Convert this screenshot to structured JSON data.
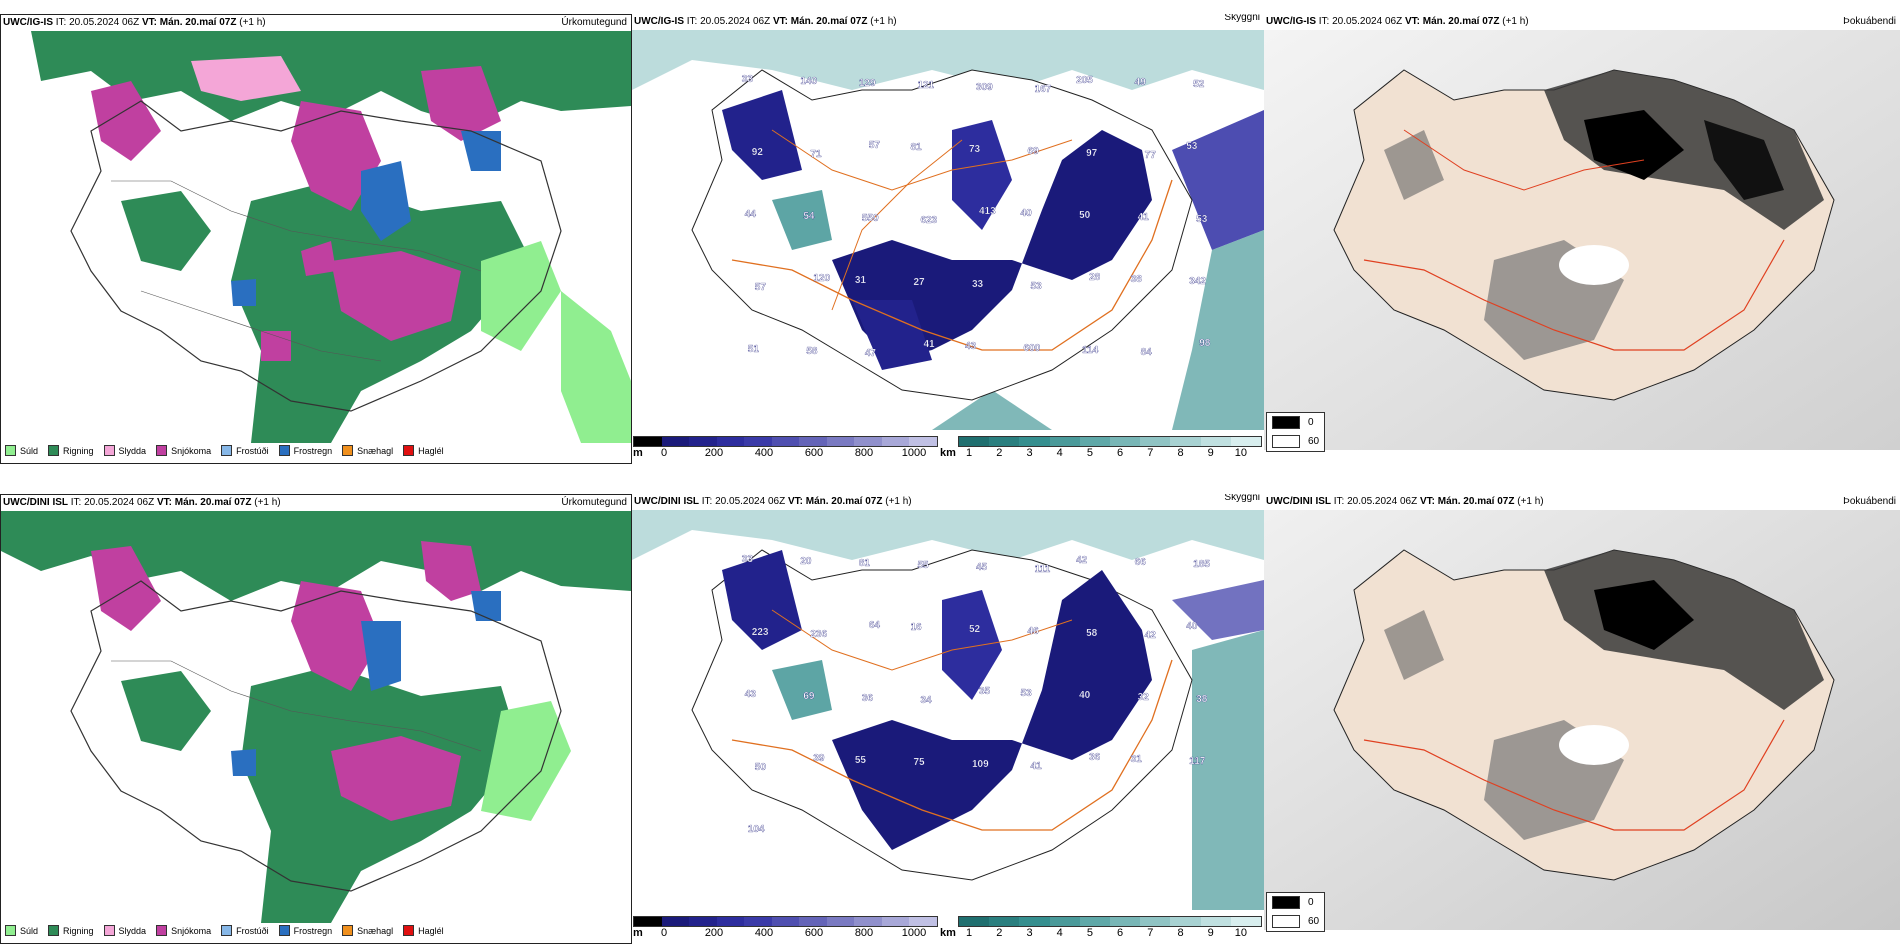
{
  "rows": [
    {
      "id": "top",
      "model_name": "UWC/IG-IS",
      "it_label": "IT: 20.05.2024 06Z",
      "vt_label": "VT: Mán. 20.maí 07Z",
      "lead_label": "(+1 h)",
      "panel_titles": [
        "Úrkomutegund",
        "Skyggni",
        "Þokuábendi"
      ],
      "cloud_numbers": [
        "33",
        "140",
        "129",
        "121",
        "309",
        "167",
        "205",
        "49",
        "52",
        "92",
        "71",
        "57",
        "81",
        "73",
        "69",
        "97",
        "77",
        "53",
        "44",
        "54",
        "550",
        "623",
        "413",
        "40",
        "50",
        "41",
        "53",
        "57",
        "120",
        "31",
        "27",
        "33",
        "53",
        "28",
        "38",
        "342",
        "51",
        "58",
        "47",
        "41",
        "43",
        "600",
        "114",
        "84",
        "98"
      ]
    },
    {
      "id": "bottom",
      "model_name": "UWC/DINI ISL",
      "it_label": "IT: 20.05.2024 06Z",
      "vt_label": "VT: Mán. 20.maí 07Z",
      "lead_label": "(+1 h)",
      "panel_titles": [
        "Úrkomutegund",
        "Skyggni",
        "Þokuábendi"
      ],
      "cloud_numbers": [
        "33",
        "20",
        "81",
        "55",
        "45",
        "111",
        "42",
        "66",
        "185",
        "223",
        "236",
        "64",
        "16",
        "52",
        "46",
        "58",
        "42",
        "40",
        "43",
        "69",
        "36",
        "34",
        "35",
        "53",
        "40",
        "32",
        "38",
        "50",
        "39",
        "55",
        "75",
        "109",
        "41",
        "36",
        "31",
        "117",
        "104"
      ]
    }
  ],
  "precip_legend": [
    {
      "label": "Súld",
      "color": "#90ee90"
    },
    {
      "label": "Rigning",
      "color": "#2e8b57"
    },
    {
      "label": "Slydda",
      "color": "#f4a6d7"
    },
    {
      "label": "Snjókoma",
      "color": "#c040a0"
    },
    {
      "label": "Frostúði",
      "color": "#87b8e8"
    },
    {
      "label": "Frostregn",
      "color": "#2a6fc0"
    },
    {
      "label": "Snæhagl",
      "color": "#f0901e"
    },
    {
      "label": "Haglél",
      "color": "#e01010"
    }
  ],
  "ceiling_scale": {
    "unit": "m",
    "ticks": [
      "0",
      "200",
      "400",
      "600",
      "800",
      "1000"
    ],
    "colors": [
      "#000000",
      "#1a1a7a",
      "#22228c",
      "#2d2d9e",
      "#3a3aa8",
      "#4f4fb0",
      "#6464b8",
      "#7a7ac2",
      "#9090cc",
      "#a8a8d8",
      "#c0c0e4"
    ]
  },
  "visibility_scale": {
    "unit": "km",
    "ticks": [
      "1",
      "2",
      "3",
      "4",
      "5",
      "6",
      "7",
      "8",
      "9",
      "10"
    ],
    "colors": [
      "#1f6f6f",
      "#2a7f7f",
      "#358f8f",
      "#4a9a9a",
      "#5fa8a8",
      "#78b6b6",
      "#90c4c4",
      "#a8d2d2",
      "#c0e0e0",
      "#d8eeee"
    ]
  },
  "fog_legend": [
    {
      "label": "0",
      "color": "#000000"
    },
    {
      "label": "60",
      "color": "#ffffff"
    }
  ]
}
